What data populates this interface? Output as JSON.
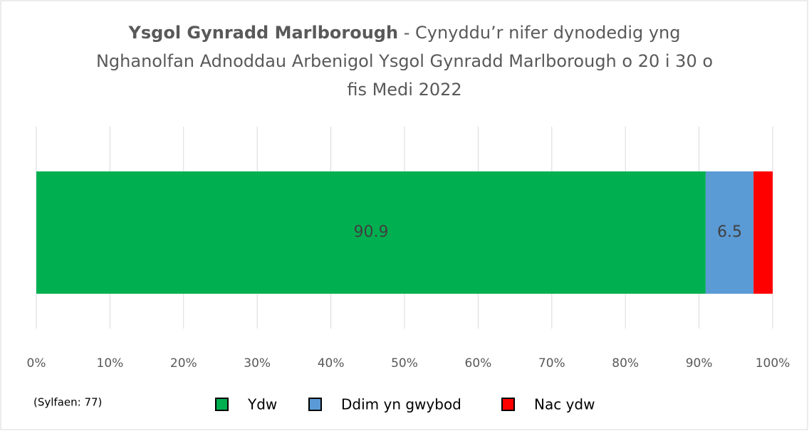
{
  "chart_data": {
    "type": "stacked_bar_horizontal",
    "title_bold": "Ysgol Gynradd Marlborough",
    "title": " - Cynyddu’r nifer dynodedig yng Nghanolfan Adnoddau Arbenigol Ysgol Gynradd Marlborough o 20 i 30 o fis Medi 2022",
    "note": "(Sylfaen: 77)",
    "series": [
      {
        "name": "Ydw",
        "color": "#00b050",
        "values": [
          90.9
        ],
        "show_label": true
      },
      {
        "name": "Ddim yn gwybod",
        "color": "#5b9bd5",
        "values": [
          6.5
        ],
        "show_label": true
      },
      {
        "name": "Nac ydw",
        "color": "#ff0000",
        "values": [
          2.6
        ],
        "show_label": false
      }
    ],
    "xlim": [
      0,
      100
    ],
    "xticks": [
      {
        "value": 0,
        "label": "0%"
      },
      {
        "value": 10,
        "label": "10%"
      },
      {
        "value": 20,
        "label": "20%"
      },
      {
        "value": 30,
        "label": "30%"
      },
      {
        "value": 40,
        "label": "40%"
      },
      {
        "value": 50,
        "label": "50%"
      },
      {
        "value": 60,
        "label": "60%"
      },
      {
        "value": 70,
        "label": "70%"
      },
      {
        "value": 80,
        "label": "80%"
      },
      {
        "value": 90,
        "label": "90%"
      },
      {
        "value": 100,
        "label": "100%"
      }
    ],
    "grid": true,
    "legend": "bottom"
  }
}
